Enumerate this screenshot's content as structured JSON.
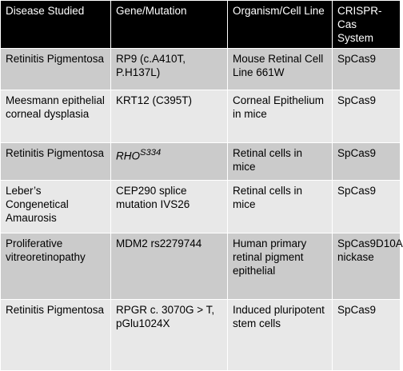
{
  "colors": {
    "header_bg": "#000000",
    "header_text": "#ffffff",
    "row_dark": "#cbcbcb",
    "row_light": "#e8e8e8"
  },
  "headers": [
    "Disease Studied",
    "Gene/Mutation",
    "Organism/Cell Line",
    "CRISPR-Cas System"
  ],
  "rows": [
    {
      "disease": "Retinitis Pigmentosa",
      "gene": "RP9 (c.A410T, P.H137L)",
      "organism": "Mouse Retinal Cell Line 661W",
      "system": "SpCas9"
    },
    {
      "disease": "Meesmann epithelial corneal dysplasia",
      "gene": "KRT12 (C395T)",
      "organism": "Corneal Epithelium in mice",
      "system": "SpCas9"
    },
    {
      "disease": "Retinitis Pigmentosa",
      "gene_base": "RHO",
      "gene_sup": "S334",
      "organism": "Retinal cells in mice",
      "system": "SpCas9"
    },
    {
      "disease": "Leber’s Congenetical Amaurosis",
      "gene": "CEP290 splice mutation IVS26",
      "organism": "Retinal cells in mice",
      "system": "SpCas9"
    },
    {
      "disease": "Proliferative vitreoretinopathy",
      "gene": "MDM2 rs2279744",
      "organism": "Human primary retinal pigment epithelial",
      "system": "SpCas9D10A nickase"
    },
    {
      "disease": "Retinitis Pigmentosa",
      "gene": "RPGR c. 3070G > T, pGlu1024X",
      "organism": "Induced pluripotent stem cells",
      "system": "SpCas9"
    }
  ]
}
